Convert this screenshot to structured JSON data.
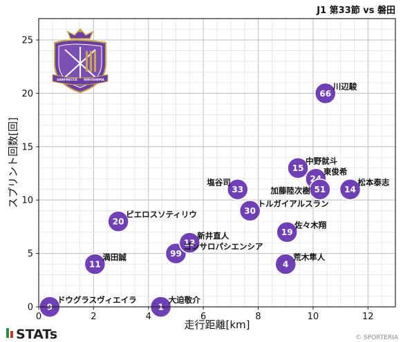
{
  "header": {
    "title": "J1 第33節 vs 磐田"
  },
  "crest": {
    "top_text": "SANFRECCE",
    "bottom_text": "HIROSHIMA",
    "purple": "#6b3fa0",
    "gold": "#c9a44a"
  },
  "footer": {
    "brand": "STATs",
    "copyright": "© SPORTERIA"
  },
  "colors": {
    "marker": "#6f3fb5",
    "marker_stroke": "#ffffff",
    "grid": "#cfcfcf"
  },
  "chart_data": {
    "type": "scatter",
    "title": "J1 第33節 vs 磐田",
    "xlabel": "走行距離[km]",
    "ylabel": "スプリント回数[回]",
    "xlim": [
      0,
      13
    ],
    "ylim": [
      0,
      27
    ],
    "xticks": [
      0,
      2,
      4,
      6,
      8,
      10,
      12
    ],
    "yticks": [
      0,
      5,
      10,
      15,
      20,
      25
    ],
    "grid": true,
    "points": [
      {
        "number": "9",
        "name": "ドウグラスヴィエイラ",
        "x": 0.4,
        "y": 0
      },
      {
        "number": "1",
        "name": "大迫敬介",
        "x": 4.45,
        "y": 0
      },
      {
        "number": "11",
        "name": "満田誠",
        "x": 2.05,
        "y": 4
      },
      {
        "number": "20",
        "name": "ピエロスソティリウ",
        "x": 2.9,
        "y": 8
      },
      {
        "number": "99",
        "name": "ゴンサロパシエンシア",
        "x": 5.0,
        "y": 5
      },
      {
        "number": "13",
        "name": "新井直人",
        "x": 5.5,
        "y": 6
      },
      {
        "number": "33",
        "name": "塩谷司",
        "x": 7.25,
        "y": 11
      },
      {
        "number": "30",
        "name": "トルガイアルスラン",
        "x": 7.7,
        "y": 9
      },
      {
        "number": "4",
        "name": "荒木隼人",
        "x": 9.0,
        "y": 4
      },
      {
        "number": "19",
        "name": "佐々木翔",
        "x": 9.05,
        "y": 7
      },
      {
        "number": "15",
        "name": "中野就斗",
        "x": 9.45,
        "y": 13
      },
      {
        "number": "24",
        "name": "東俊希",
        "x": 10.1,
        "y": 12
      },
      {
        "number": "51",
        "name": "加藤陸次樹",
        "x": 10.25,
        "y": 11
      },
      {
        "number": "14",
        "name": "松本泰志",
        "x": 11.35,
        "y": 11
      },
      {
        "number": "66",
        "name": "川辺駿",
        "x": 10.45,
        "y": 20
      }
    ]
  }
}
